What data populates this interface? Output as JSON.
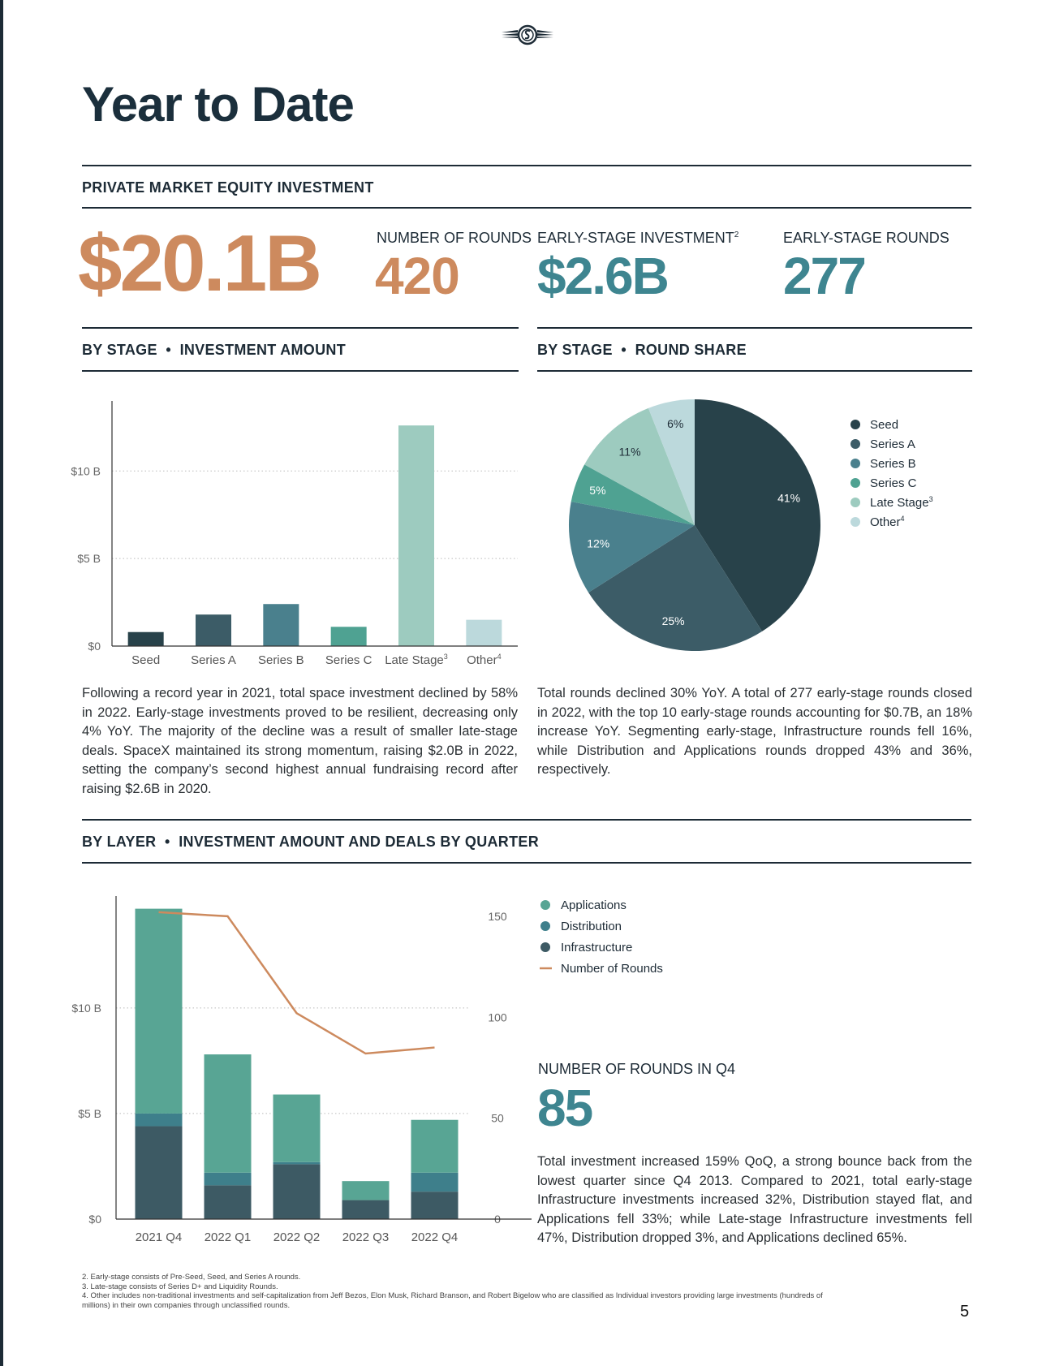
{
  "page_title": "Year to Date",
  "page_number": "5",
  "colors": {
    "accent_orange": "#cd8a5e",
    "accent_teal": "#3e8590",
    "navy": "#1d2b36",
    "seed": "#28424a",
    "series_a": "#3c5c67",
    "series_b": "#4a808d",
    "series_c": "#4fa292",
    "late_stage": "#9dcbbf",
    "other": "#bcd9dc",
    "applications": "#58a594",
    "distribution": "#3e7f8b",
    "infrastructure": "#3d5a64",
    "rounds_line": "#cd8a5e"
  },
  "private_market": {
    "heading": "PRIVATE MARKET EQUITY INVESTMENT",
    "total": "$20.1B",
    "rounds_label": "NUMBER OF ROUNDS",
    "rounds_value": "420",
    "early_investment_label": "EARLY-STAGE INVESTMENT",
    "early_investment_sup": "2",
    "early_investment_value": "$2.6B",
    "early_rounds_label": "EARLY-STAGE ROUNDS",
    "early_rounds_value": "277"
  },
  "by_stage_amount": {
    "heading_left": "BY STAGE",
    "heading_right": "INVESTMENT AMOUNT",
    "paragraph": "Following a record year in 2021, total space investment declined by 58% in 2022. Early-stage investments proved to be resilient, decreasing only 4% YoY. The majority of the decline was a result of smaller late-stage deals. SpaceX maintained its strong momentum, raising $2.0B in 2022, setting the company’s second highest annual fundraising record after raising $2.6B in 2020."
  },
  "by_stage_share": {
    "heading_left": "BY STAGE",
    "heading_right": "ROUND SHARE",
    "paragraph": "Total rounds declined 30% YoY. A total of 277 early-stage rounds closed in 2022, with the top 10 early-stage rounds accounting for $0.7B, an 18% increase YoY. Segmenting early-stage, Infrastructure rounds fell 16%, while Distribution and Applications rounds dropped 43% and 36%, respectively."
  },
  "by_layer": {
    "heading_left": "BY LAYER",
    "heading_right": "INVESTMENT AMOUNT AND DEALS BY QUARTER",
    "q4_label": "NUMBER OF ROUNDS IN Q4",
    "q4_value": "85",
    "paragraph": "Total investment increased 159% QoQ, a strong bounce back from the lowest quarter since Q4 2013. Compared to 2021, total early-stage Infrastructure investments increased 32%, Distribution stayed flat, and Applications fell 33%; while Late-stage Infrastructure investments fell 47%, Distribution dropped 3%, and Applications declined 65%."
  },
  "footnotes": [
    "2. Early-stage consists of Pre-Seed, Seed, and Series A rounds.",
    "3. Late-stage consists of Series D+ and Liquidity Rounds.",
    "4. Other includes non-traditional investments and self-capitalization from Jeff Bezos, Elon Musk, Richard Branson, and Robert Bigelow who are classified as Individual investors providing large investments (hundreds of millions) in their own companies through unclassified rounds."
  ],
  "chart_data": [
    {
      "type": "bar",
      "title": "BY STAGE • INVESTMENT AMOUNT",
      "categories": [
        "Seed",
        "Series A",
        "Series B",
        "Series C",
        "Late Stage",
        "Other"
      ],
      "category_sups": [
        "",
        "",
        "",
        "",
        "3",
        "4"
      ],
      "values": [
        0.8,
        1.8,
        2.4,
        1.1,
        12.6,
        1.5
      ],
      "unit": "$B",
      "ylim": [
        0,
        14
      ],
      "yticks": [
        0,
        5,
        10
      ],
      "ytick_labels": [
        "$0",
        "$5 B",
        "$10 B"
      ],
      "grid": true
    },
    {
      "type": "pie",
      "title": "BY STAGE • ROUND SHARE",
      "labels": [
        "Seed",
        "Series A",
        "Series B",
        "Series C",
        "Late Stage",
        "Other"
      ],
      "label_sups": [
        "",
        "",
        "",
        "",
        "3",
        "4"
      ],
      "values": [
        41,
        25,
        12,
        5,
        11,
        6
      ],
      "value_labels": [
        "41%",
        "25%",
        "12%",
        "5%",
        "11%",
        "6%"
      ],
      "legend": "right"
    },
    {
      "type": "bar",
      "stacked": true,
      "title": "BY LAYER • INVESTMENT AMOUNT AND DEALS BY QUARTER",
      "categories": [
        "2021 Q4",
        "2022 Q1",
        "2022 Q2",
        "2022 Q3",
        "2022 Q4"
      ],
      "series": [
        {
          "name": "Infrastructure",
          "values": [
            4.4,
            1.6,
            2.6,
            0.9,
            1.3
          ]
        },
        {
          "name": "Distribution",
          "values": [
            0.6,
            0.6,
            0.1,
            0.0,
            0.9
          ]
        },
        {
          "name": "Applications",
          "values": [
            9.7,
            5.6,
            3.2,
            0.9,
            2.5
          ]
        }
      ],
      "line_series": {
        "name": "Number of Rounds",
        "values": [
          152,
          150,
          102,
          82,
          85
        ],
        "ylim": [
          0,
          160
        ]
      },
      "legend_order": [
        "Applications",
        "Distribution",
        "Infrastructure",
        "Number of Rounds"
      ],
      "unit": "$B",
      "ylim": [
        0,
        15.3
      ],
      "yticks": [
        0,
        5,
        10
      ],
      "ytick_labels": [
        "$0",
        "$5 B",
        "$10 B"
      ],
      "y2ticks": [
        0,
        50,
        100,
        150
      ],
      "y2tick_labels": [
        "0",
        "50",
        "100",
        "150"
      ],
      "grid": true
    }
  ]
}
